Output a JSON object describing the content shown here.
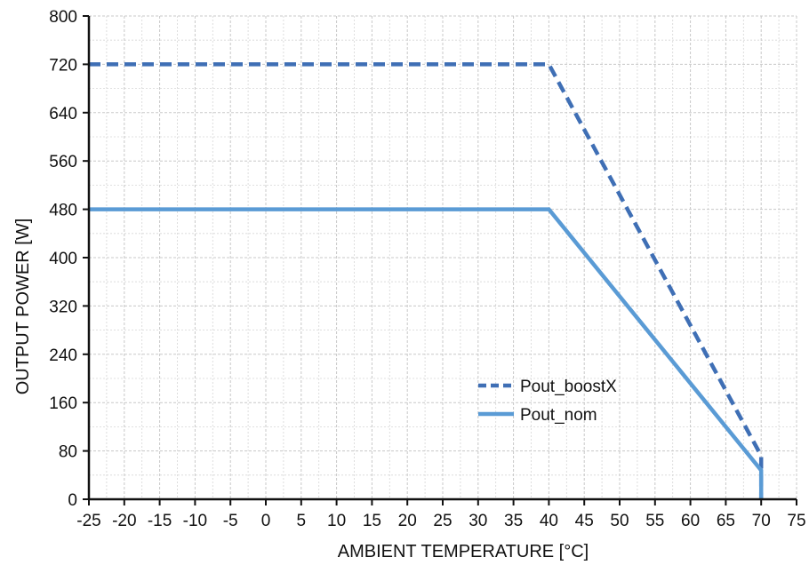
{
  "chart_data": {
    "type": "line",
    "xlabel": "AMBIENT TEMPERATURE [°C]",
    "ylabel": "OUTPUT POWER [W]",
    "xlim": [
      -25,
      75
    ],
    "ylim": [
      0,
      800
    ],
    "x_ticks": [
      -25,
      -20,
      -15,
      -10,
      -5,
      0,
      5,
      10,
      15,
      20,
      25,
      30,
      35,
      40,
      45,
      50,
      55,
      60,
      65,
      70,
      75
    ],
    "x_tick_labels": [
      "-25",
      "-20",
      "-15",
      "-10",
      "-5",
      "0",
      "5",
      "10",
      "15",
      "20",
      "25",
      "30",
      "35",
      "40",
      "45",
      "50",
      "55",
      "60",
      "65",
      "70",
      "75"
    ],
    "y_ticks": [
      0,
      80,
      160,
      240,
      320,
      400,
      480,
      560,
      640,
      720,
      800
    ],
    "y_tick_labels": [
      "0",
      "80",
      "160",
      "240",
      "320",
      "400",
      "480",
      "560",
      "640",
      "720",
      "800"
    ],
    "grid": true,
    "legend_position": "bottom-center",
    "series": [
      {
        "name": "Pout_boostX",
        "style": "dashed",
        "color": "#3f6fb5",
        "points": [
          [
            -25,
            720
          ],
          [
            40,
            720
          ],
          [
            70,
            72
          ],
          [
            70,
            0
          ]
        ]
      },
      {
        "name": "Pout_nom",
        "style": "solid",
        "color": "#5a9bd5",
        "points": [
          [
            -25,
            480
          ],
          [
            40,
            480
          ],
          [
            70,
            48
          ],
          [
            70,
            0
          ]
        ]
      }
    ]
  }
}
